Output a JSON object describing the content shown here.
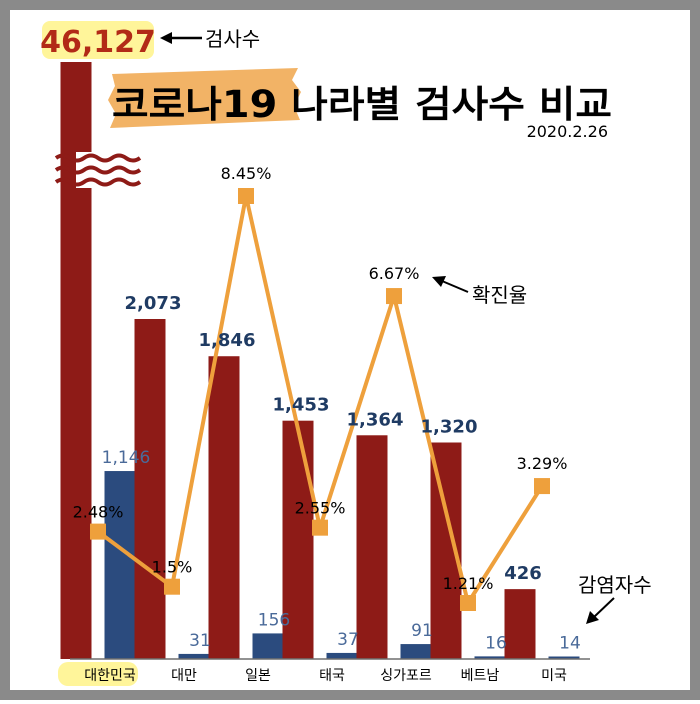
{
  "chart_data": {
    "type": "bar",
    "title": "코로나19 나라별 검사수 비교",
    "date": "2020.2.26",
    "categories": [
      "대한민국",
      "대만",
      "일본",
      "태국",
      "싱가포르",
      "베트남",
      "미국"
    ],
    "series": [
      {
        "name": "검사수",
        "values": [
          46127,
          2073,
          1846,
          1453,
          1364,
          1320,
          426
        ],
        "labels": [
          "46,127",
          "2,073",
          "1,846",
          "1,453",
          "1,364",
          "1,320",
          "426"
        ],
        "color": "#8e1b17"
      },
      {
        "name": "감염자수",
        "values": [
          1146,
          31,
          156,
          37,
          91,
          16,
          14
        ],
        "labels": [
          "1,146",
          "31",
          "156",
          "37",
          "91",
          "16",
          "14"
        ],
        "color": "#2b4b7e"
      },
      {
        "name": "확진율",
        "type": "line",
        "values": [
          2.48,
          1.5,
          8.45,
          2.55,
          6.67,
          1.21,
          3.29
        ],
        "labels": [
          "2.48%",
          "1.5%",
          "8.45%",
          "2.55%",
          "6.67%",
          "1.21%",
          "3.29%"
        ],
        "unit": "%",
        "color": "#eea03c"
      }
    ],
    "axis_break": {
      "series": "검사수",
      "category": "대한민국"
    },
    "highlight_category": "대한민국",
    "colors": {
      "title_highlight": "#f2b366",
      "total_highlight": "#fff59a",
      "frame": "#8a8a8a",
      "axis": "#6f6f6f"
    }
  }
}
